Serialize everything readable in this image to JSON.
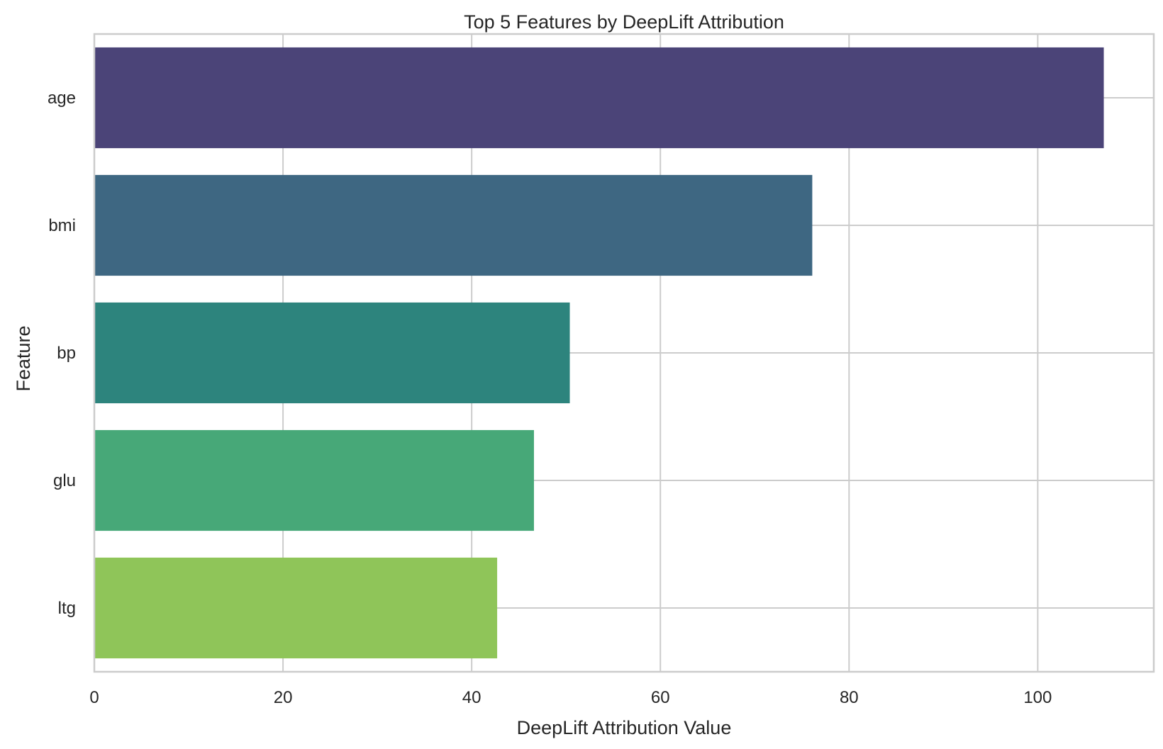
{
  "chart_data": {
    "type": "bar",
    "orientation": "horizontal",
    "title": "Top 5 Features by DeepLift Attribution",
    "xlabel": "DeepLift Attribution Value",
    "ylabel": "Feature",
    "categories": [
      "age",
      "bmi",
      "bp",
      "glu",
      "ltg"
    ],
    "values": [
      107.0,
      76.1,
      50.4,
      46.6,
      42.7
    ],
    "xlim": [
      0,
      112.3
    ],
    "xticks": [
      0,
      20,
      40,
      60,
      80,
      100
    ],
    "xtick_labels": [
      "0",
      "20",
      "40",
      "60",
      "80",
      "100"
    ],
    "colors": [
      "#4b4478",
      "#3e6782",
      "#2d847d",
      "#47a878",
      "#8fc559"
    ],
    "grid": true,
    "legend": "none"
  }
}
